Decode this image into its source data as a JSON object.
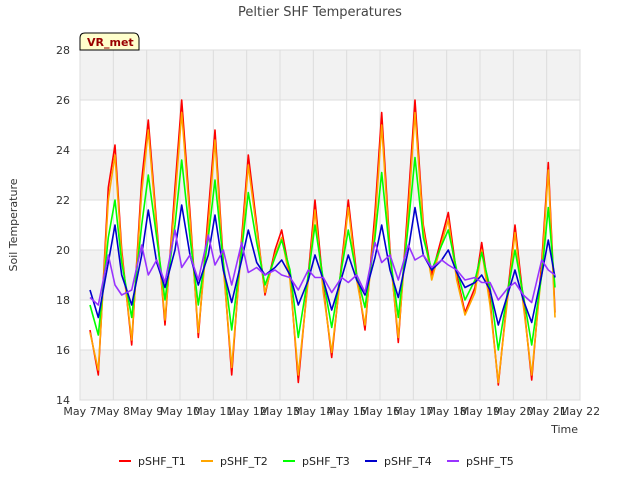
{
  "chart_data": {
    "type": "line",
    "title": "Peltier SHF Temperatures",
    "xlabel": "Time",
    "ylabel": "Soil Temperature",
    "badge": "VR_met",
    "ylim": [
      14,
      28
    ],
    "yticks": [
      "14",
      "16",
      "18",
      "20",
      "22",
      "24",
      "26",
      "28"
    ],
    "xlim": [
      7,
      22
    ],
    "xticks": [
      "May 7",
      "May 8",
      "May 9",
      "May 10",
      "May 11",
      "May 12",
      "May 13",
      "May 14",
      "May 15",
      "May 16",
      "May 17",
      "May 18",
      "May 19",
      "May 20",
      "May 21",
      "May 22"
    ],
    "grid": true,
    "legend_position": "bottom",
    "series": [
      {
        "name": "pSHF_T1",
        "color": "#ff0000",
        "x": [
          7.3,
          7.55,
          7.85,
          8.05,
          8.25,
          8.55,
          8.85,
          9.05,
          9.3,
          9.55,
          9.85,
          10.05,
          10.3,
          10.55,
          10.85,
          11.05,
          11.3,
          11.55,
          11.85,
          12.05,
          12.3,
          12.55,
          12.85,
          13.05,
          13.3,
          13.55,
          13.85,
          14.05,
          14.3,
          14.55,
          14.85,
          15.05,
          15.3,
          15.55,
          15.85,
          16.05,
          16.3,
          16.55,
          16.85,
          17.05,
          17.3,
          17.55,
          17.85,
          18.05,
          18.3,
          18.55,
          18.85,
          19.05,
          19.3,
          19.55,
          19.85,
          20.05,
          20.3,
          20.55,
          20.85,
          21.05,
          21.25
        ],
        "y": [
          16.8,
          15.0,
          22.5,
          24.2,
          20.0,
          16.2,
          22.8,
          25.2,
          21.0,
          17.0,
          22.5,
          26.0,
          21.5,
          16.5,
          21.5,
          24.8,
          19.5,
          15.0,
          20.5,
          23.8,
          21.0,
          18.2,
          20.0,
          20.8,
          19.0,
          14.7,
          19.0,
          22.0,
          18.5,
          15.7,
          19.5,
          22.0,
          19.0,
          16.8,
          21.5,
          25.5,
          20.0,
          16.3,
          22.0,
          26.0,
          21.0,
          19.0,
          20.5,
          21.5,
          19.0,
          17.5,
          18.5,
          20.3,
          18.0,
          14.6,
          18.5,
          21.0,
          18.0,
          14.8,
          19.5,
          23.5,
          17.5
        ]
      },
      {
        "name": "pSHF_T2",
        "color": "#ffa500",
        "x": [
          7.3,
          7.55,
          7.85,
          8.05,
          8.25,
          8.55,
          8.85,
          9.05,
          9.3,
          9.55,
          9.85,
          10.05,
          10.3,
          10.55,
          10.85,
          11.05,
          11.3,
          11.55,
          11.85,
          12.05,
          12.3,
          12.55,
          12.85,
          13.05,
          13.3,
          13.55,
          13.85,
          14.05,
          14.3,
          14.55,
          14.85,
          15.05,
          15.3,
          15.55,
          15.85,
          16.05,
          16.3,
          16.55,
          16.85,
          17.05,
          17.3,
          17.55,
          17.85,
          18.05,
          18.3,
          18.55,
          18.85,
          19.05,
          19.3,
          19.55,
          19.85,
          20.05,
          20.3,
          20.55,
          20.85,
          21.05,
          21.25
        ],
        "y": [
          16.7,
          15.2,
          22.0,
          23.8,
          19.8,
          16.4,
          22.3,
          24.8,
          20.8,
          17.2,
          22.0,
          25.5,
          21.2,
          16.7,
          21.0,
          24.4,
          19.3,
          15.3,
          20.2,
          23.4,
          20.8,
          18.3,
          19.8,
          20.5,
          18.8,
          15.0,
          18.8,
          21.6,
          18.3,
          15.9,
          19.3,
          21.7,
          18.8,
          17.0,
          21.0,
          25.0,
          19.8,
          16.5,
          21.5,
          25.5,
          20.8,
          18.8,
          20.3,
          21.2,
          18.8,
          17.4,
          18.3,
          20.0,
          17.8,
          14.7,
          18.3,
          20.7,
          17.8,
          15.0,
          19.2,
          23.2,
          17.3
        ]
      },
      {
        "name": "pSHF_T3",
        "color": "#00ff00",
        "x": [
          7.3,
          7.55,
          7.85,
          8.05,
          8.25,
          8.55,
          8.85,
          9.05,
          9.3,
          9.55,
          9.85,
          10.05,
          10.3,
          10.55,
          10.85,
          11.05,
          11.3,
          11.55,
          11.85,
          12.05,
          12.3,
          12.55,
          12.85,
          13.05,
          13.3,
          13.55,
          13.85,
          14.05,
          14.3,
          14.55,
          14.85,
          15.05,
          15.3,
          15.55,
          15.85,
          16.05,
          16.3,
          16.55,
          16.85,
          17.05,
          17.3,
          17.55,
          17.85,
          18.05,
          18.3,
          18.55,
          18.85,
          19.05,
          19.3,
          19.55,
          19.85,
          20.05,
          20.3,
          20.55,
          20.85,
          21.05,
          21.25
        ],
        "y": [
          17.8,
          16.6,
          20.5,
          22.0,
          19.5,
          17.3,
          21.0,
          23.0,
          20.5,
          18.0,
          21.0,
          23.6,
          20.5,
          17.8,
          20.5,
          22.8,
          19.5,
          16.8,
          20.0,
          22.3,
          20.3,
          18.6,
          19.7,
          20.4,
          19.2,
          16.5,
          19.0,
          21.0,
          18.8,
          16.9,
          19.3,
          20.8,
          19.0,
          17.7,
          20.5,
          23.1,
          19.8,
          17.3,
          21.0,
          23.7,
          20.5,
          19.2,
          20.2,
          20.8,
          19.2,
          18.0,
          18.8,
          19.9,
          18.5,
          16.0,
          18.5,
          20.0,
          18.2,
          16.2,
          19.0,
          21.7,
          18.5
        ]
      },
      {
        "name": "pSHF_T4",
        "color": "#0000cc",
        "x": [
          7.3,
          7.55,
          7.85,
          8.05,
          8.25,
          8.55,
          8.85,
          9.05,
          9.3,
          9.55,
          9.85,
          10.05,
          10.3,
          10.55,
          10.85,
          11.05,
          11.3,
          11.55,
          11.85,
          12.05,
          12.3,
          12.55,
          12.85,
          13.05,
          13.3,
          13.55,
          13.85,
          14.05,
          14.3,
          14.55,
          14.85,
          15.05,
          15.3,
          15.55,
          15.85,
          16.05,
          16.3,
          16.55,
          16.85,
          17.05,
          17.3,
          17.55,
          17.85,
          18.05,
          18.3,
          18.55,
          18.85,
          19.05,
          19.3,
          19.55,
          19.85,
          20.05,
          20.3,
          20.55,
          20.85,
          21.05,
          21.25
        ],
        "y": [
          18.4,
          17.3,
          19.5,
          21.0,
          19.0,
          17.8,
          19.8,
          21.6,
          19.5,
          18.5,
          20.0,
          21.8,
          19.8,
          18.6,
          19.8,
          21.4,
          19.2,
          17.9,
          19.6,
          20.8,
          19.5,
          19.0,
          19.3,
          19.6,
          19.0,
          17.8,
          18.8,
          19.8,
          18.8,
          17.6,
          18.9,
          19.8,
          18.8,
          18.2,
          19.7,
          21.0,
          19.2,
          18.1,
          20.0,
          21.7,
          19.8,
          19.2,
          19.6,
          20.0,
          19.1,
          18.5,
          18.7,
          19.0,
          18.4,
          17.0,
          18.3,
          19.2,
          18.0,
          17.1,
          19.0,
          20.4,
          18.9
        ]
      },
      {
        "name": "pSHF_T5",
        "color": "#9933ff",
        "x": [
          7.3,
          7.55,
          7.85,
          8.05,
          8.25,
          8.55,
          8.85,
          9.05,
          9.3,
          9.55,
          9.85,
          10.05,
          10.3,
          10.55,
          10.85,
          11.05,
          11.3,
          11.55,
          11.85,
          12.05,
          12.3,
          12.55,
          12.85,
          13.05,
          13.3,
          13.55,
          13.85,
          14.05,
          14.3,
          14.55,
          14.85,
          15.05,
          15.3,
          15.55,
          15.85,
          16.05,
          16.3,
          16.55,
          16.85,
          17.05,
          17.3,
          17.55,
          17.85,
          18.05,
          18.3,
          18.55,
          18.85,
          19.05,
          19.3,
          19.55,
          19.85,
          20.05,
          20.3,
          20.55,
          20.85,
          21.05,
          21.25
        ],
        "y": [
          18.1,
          17.8,
          19.8,
          18.6,
          18.2,
          18.4,
          20.2,
          19.0,
          19.6,
          18.7,
          20.8,
          19.3,
          19.8,
          18.8,
          20.6,
          19.4,
          20.0,
          18.6,
          20.3,
          19.1,
          19.3,
          19.0,
          19.2,
          19.0,
          18.9,
          18.4,
          19.2,
          18.9,
          18.9,
          18.3,
          18.9,
          18.7,
          19.0,
          18.3,
          20.3,
          19.5,
          19.8,
          18.8,
          20.2,
          19.6,
          19.8,
          19.3,
          19.6,
          19.4,
          19.2,
          18.8,
          18.9,
          18.7,
          18.7,
          18.0,
          18.5,
          18.7,
          18.2,
          17.9,
          19.6,
          19.2,
          19.0
        ]
      }
    ]
  }
}
